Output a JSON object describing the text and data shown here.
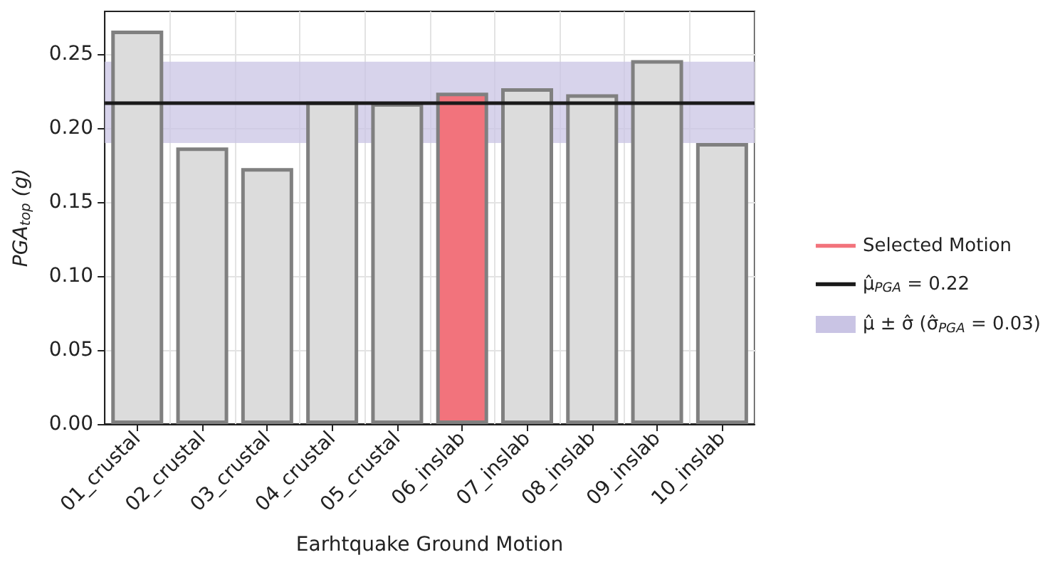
{
  "chart_data": {
    "type": "bar",
    "xlabel": "Earhtquake Ground Motion",
    "ylabel": "PGA$_{top}$ (g)",
    "categories": [
      "01_crustal",
      "02_crustal",
      "03_crustal",
      "04_crustal",
      "05_crustal",
      "06_inslab",
      "07_inslab",
      "08_inslab",
      "09_inslab",
      "10_inslab"
    ],
    "series": [
      {
        "color": "#dcdcdc",
        "values": [
          0.266,
          0.187,
          0.173,
          0.218,
          0.217,
          null,
          0.227,
          0.223,
          0.246,
          0.19
        ]
      },
      {
        "name": "Selected Motion",
        "color": "#f2737c",
        "values": [
          null,
          null,
          null,
          null,
          null,
          0.224,
          null,
          null,
          null,
          null
        ]
      }
    ],
    "ylim": [
      0,
      0.279
    ],
    "yticks": [
      {
        "value": 0,
        "label": "0.00"
      },
      {
        "value": 0.05,
        "label": "0.05"
      },
      {
        "value": 0.1,
        "label": "0.10"
      },
      {
        "value": 0.15,
        "label": "0.15"
      },
      {
        "value": 0.2,
        "label": "0.20"
      },
      {
        "value": 0.25,
        "label": "0.25"
      }
    ],
    "ref_lines": [
      {
        "axis": "y",
        "value": 0.217,
        "label": "μ̂$_{PGA}$ = 0.22",
        "color": "#1a1a1a"
      }
    ],
    "bands": [
      {
        "axis": "y",
        "from": 0.19,
        "to": 0.245,
        "label": "μ̂ ± σ̂ (σ̂$_{PGA}$ = 0.03)",
        "color": "#c9c4e4"
      }
    ],
    "grid": true,
    "legend": "right"
  }
}
